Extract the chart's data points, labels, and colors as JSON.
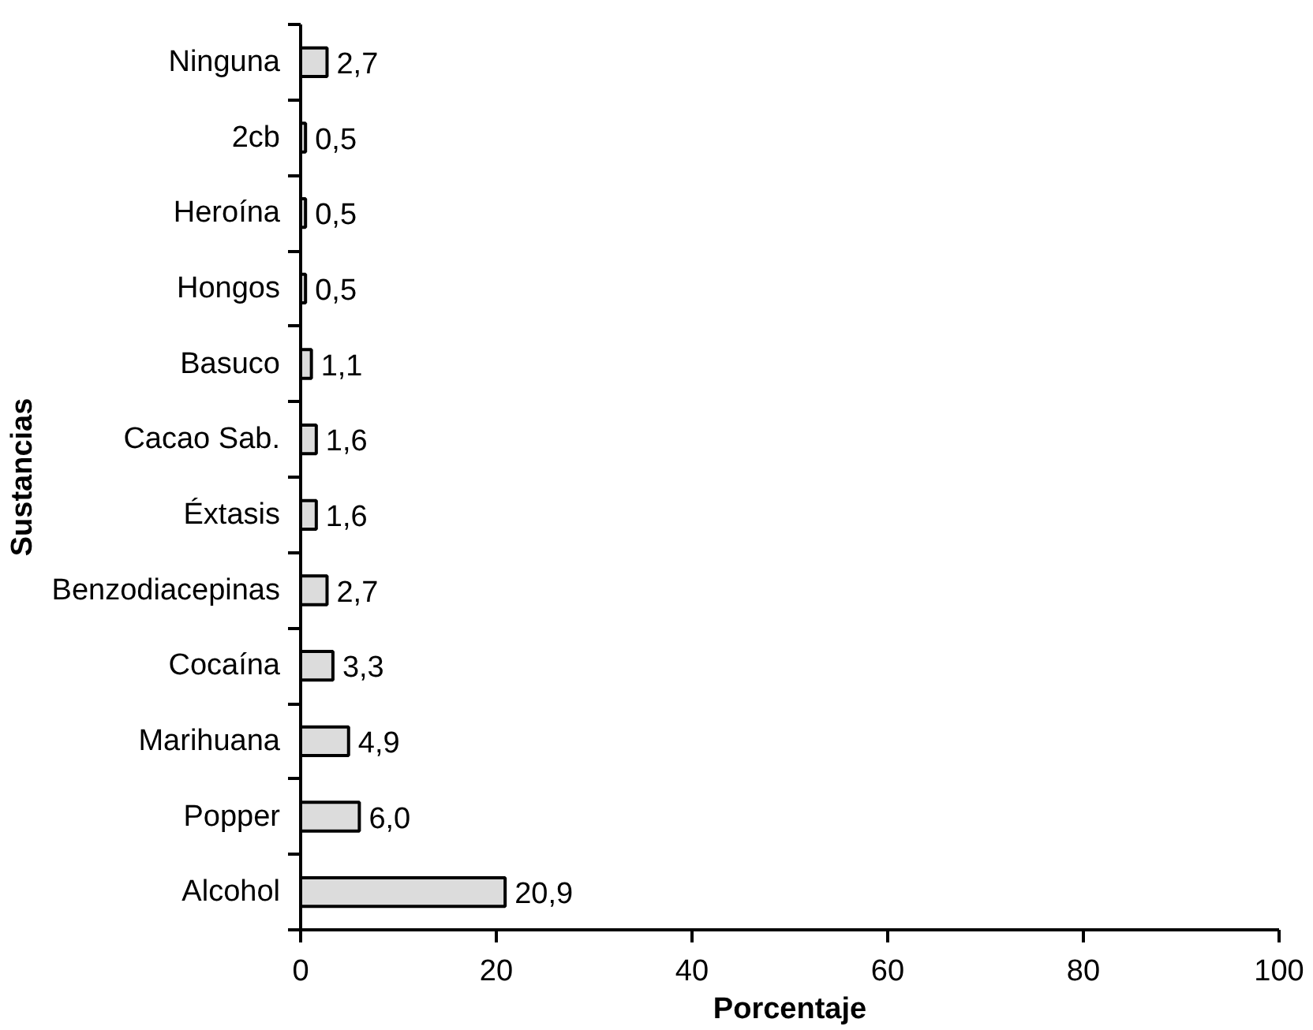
{
  "chart_data": {
    "type": "bar",
    "orientation": "horizontal",
    "xlabel": "Porcentaje",
    "ylabel": "Sustancias",
    "categories": [
      "Ninguna",
      "2cb",
      "Heroína",
      "Hongos",
      "Basuco",
      "Cacao Sab.",
      "Éxtasis",
      "Benzodiacepinas",
      "Cocaína",
      "Marihuana",
      "Popper",
      "Alcohol"
    ],
    "values": [
      2.7,
      0.5,
      0.5,
      0.5,
      1.1,
      1.6,
      1.6,
      2.7,
      3.3,
      4.9,
      6.0,
      20.9
    ],
    "value_labels": [
      "2,7",
      "0,5",
      "0,5",
      "0,5",
      "1,1",
      "1,6",
      "1,6",
      "2,7",
      "3,3",
      "4,9",
      "6,0",
      "20,9"
    ],
    "color": "#dcdcdc",
    "xlim": [
      0,
      100
    ],
    "xticks": [
      0,
      20,
      40,
      60,
      80,
      100
    ],
    "grid": false
  }
}
